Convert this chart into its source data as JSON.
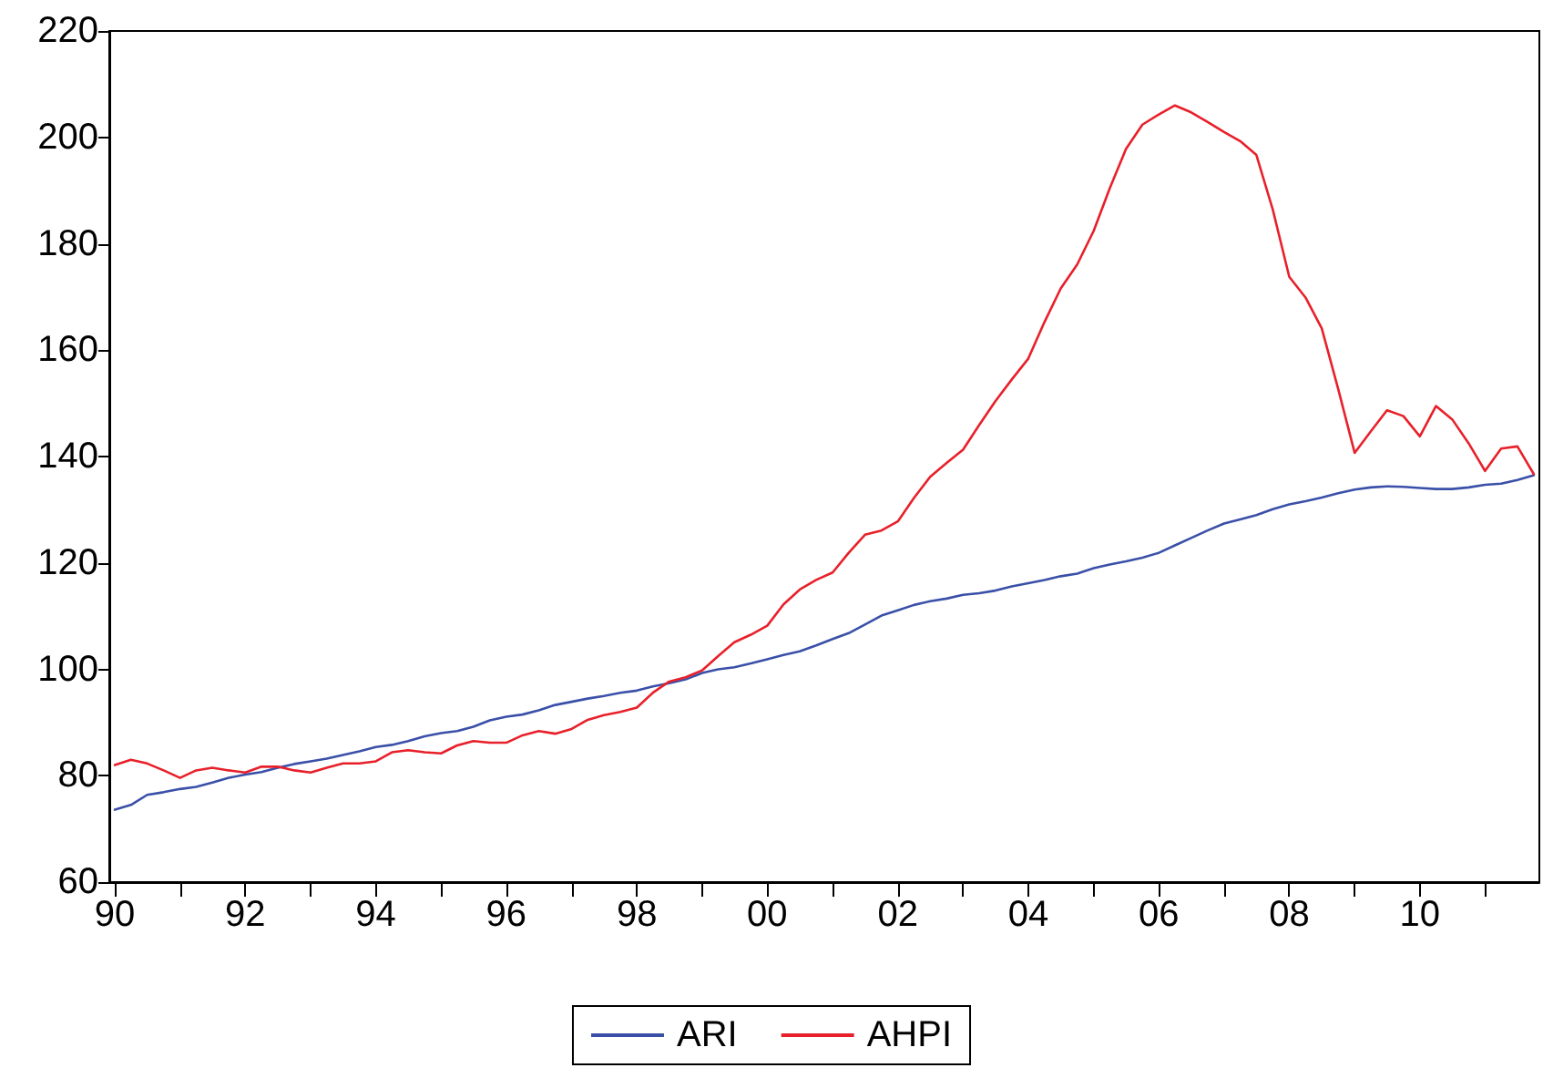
{
  "chart_data": {
    "type": "line",
    "x": [
      "1990-01",
      "1990-04",
      "1990-07",
      "1990-10",
      "1991-01",
      "1991-04",
      "1991-07",
      "1991-10",
      "1992-01",
      "1992-04",
      "1992-07",
      "1992-10",
      "1993-01",
      "1993-04",
      "1993-07",
      "1993-10",
      "1994-01",
      "1994-04",
      "1994-07",
      "1994-10",
      "1995-01",
      "1995-04",
      "1995-07",
      "1995-10",
      "1996-01",
      "1996-04",
      "1996-07",
      "1996-10",
      "1997-01",
      "1997-04",
      "1997-07",
      "1997-10",
      "1998-01",
      "1998-04",
      "1998-07",
      "1998-10",
      "1999-01",
      "1999-04",
      "1999-07",
      "1999-10",
      "2000-01",
      "2000-04",
      "2000-07",
      "2000-10",
      "2001-01",
      "2001-04",
      "2001-07",
      "2001-10",
      "2002-01",
      "2002-04",
      "2002-07",
      "2002-10",
      "2003-01",
      "2003-04",
      "2003-07",
      "2003-10",
      "2004-01",
      "2004-04",
      "2004-07",
      "2004-10",
      "2005-01",
      "2005-04",
      "2005-07",
      "2005-10",
      "2006-01",
      "2006-04",
      "2006-07",
      "2006-10",
      "2007-01",
      "2007-04",
      "2007-07",
      "2007-10",
      "2008-01",
      "2008-04",
      "2008-07",
      "2008-10",
      "2009-01",
      "2009-04",
      "2009-07",
      "2009-10",
      "2010-01",
      "2010-04",
      "2010-07",
      "2010-10",
      "2011-01",
      "2011-04",
      "2011-07",
      "2011-10"
    ],
    "series": [
      {
        "name": "ARI",
        "color": "#3a50a8",
        "values": [
          73.6,
          74.5,
          76.4,
          76.9,
          77.5,
          77.9,
          78.7,
          79.6,
          80.2,
          80.7,
          81.5,
          82.2,
          82.7,
          83.2,
          83.9,
          84.6,
          85.4,
          85.8,
          86.5,
          87.4,
          88.0,
          88.4,
          89.2,
          90.4,
          91.1,
          91.5,
          92.3,
          93.3,
          93.9,
          94.5,
          95.0,
          95.6,
          96.0,
          96.8,
          97.4,
          98.1,
          99.3,
          100.0,
          100.4,
          101.1,
          101.9,
          102.7,
          103.4,
          104.5,
          105.7,
          106.8,
          108.4,
          110.1,
          111.1,
          112.1,
          112.8,
          113.3,
          114.0,
          114.3,
          114.8,
          115.6,
          116.2,
          116.8,
          117.5,
          118.0,
          119.0,
          119.7,
          120.3,
          121.0,
          121.9,
          123.3,
          124.7,
          126.1,
          127.4,
          128.2,
          129.0,
          130.1,
          131.0,
          131.6,
          132.3,
          133.1,
          133.8,
          134.2,
          134.4,
          134.3,
          134.1,
          133.9,
          133.9,
          134.2,
          134.7,
          134.9,
          135.6,
          136.5
        ]
      },
      {
        "name": "AHPI",
        "color": "#e8202a",
        "values": [
          82.0,
          83.0,
          82.3,
          81.0,
          79.6,
          81.0,
          81.5,
          81.0,
          80.6,
          81.7,
          81.7,
          81.0,
          80.6,
          81.5,
          82.3,
          82.3,
          82.7,
          84.4,
          84.8,
          84.4,
          84.2,
          85.7,
          86.5,
          86.2,
          86.2,
          87.6,
          88.4,
          87.9,
          88.8,
          90.5,
          91.4,
          92.0,
          92.8,
          95.6,
          97.7,
          98.5,
          99.8,
          102.5,
          105.1,
          106.5,
          108.2,
          112.2,
          115.0,
          116.8,
          118.2,
          121.9,
          125.3,
          126.1,
          127.8,
          132.2,
          136.2,
          138.8,
          141.3,
          145.9,
          150.4,
          154.5,
          158.4,
          165.3,
          171.6,
          176.1,
          182.4,
          190.4,
          197.8,
          202.4,
          204.3,
          206.0,
          204.7,
          202.9,
          201.0,
          199.3,
          196.7,
          186.4,
          173.8,
          169.9,
          164.1,
          152.7,
          140.7,
          144.7,
          148.7,
          147.6,
          143.8,
          149.5,
          147.0,
          142.5,
          137.3,
          141.5,
          141.9,
          136.7
        ]
      }
    ],
    "xlim": [
      "1989-12",
      "2011-11"
    ],
    "xticks": [
      {
        "value": "1990",
        "label": "90"
      },
      {
        "value": "1991",
        "label": null
      },
      {
        "value": "1992",
        "label": "92"
      },
      {
        "value": "1993",
        "label": null
      },
      {
        "value": "1994",
        "label": "94"
      },
      {
        "value": "1995",
        "label": null
      },
      {
        "value": "1996",
        "label": "96"
      },
      {
        "value": "1997",
        "label": null
      },
      {
        "value": "1998",
        "label": "98"
      },
      {
        "value": "1999",
        "label": null
      },
      {
        "value": "2000",
        "label": "00"
      },
      {
        "value": "2001",
        "label": null
      },
      {
        "value": "2002",
        "label": "02"
      },
      {
        "value": "2003",
        "label": null
      },
      {
        "value": "2004",
        "label": "04"
      },
      {
        "value": "2005",
        "label": null
      },
      {
        "value": "2006",
        "label": "06"
      },
      {
        "value": "2007",
        "label": null
      },
      {
        "value": "2008",
        "label": "08"
      },
      {
        "value": "2009",
        "label": null
      },
      {
        "value": "2010",
        "label": "10"
      },
      {
        "value": "2011",
        "label": null
      }
    ],
    "ylim": [
      60,
      220
    ],
    "yticks": [
      60,
      80,
      100,
      120,
      140,
      160,
      180,
      200,
      220
    ],
    "grid": false,
    "legend": "bottom",
    "marker": "none",
    "line_style": "solid"
  }
}
